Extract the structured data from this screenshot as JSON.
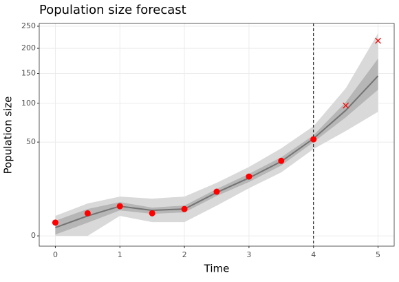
{
  "chart_data": {
    "type": "forecast",
    "title": "Population size forecast",
    "xlabel": "Time",
    "ylabel": "Population size",
    "yscale": "sqrt",
    "xlim": [
      -0.25,
      5.25
    ],
    "ylim": [
      -0.6,
      256.6
    ],
    "xticks": [
      0,
      1,
      2,
      3,
      4,
      5
    ],
    "yticks": [
      0,
      50,
      100,
      150,
      200,
      250
    ],
    "grid": true,
    "vline": 4,
    "x": [
      0,
      0.5,
      1,
      1.5,
      2,
      2.5,
      3,
      3.5,
      4,
      4.5,
      5
    ],
    "bands": [
      {
        "color": "#d9d9d9",
        "upper": [
          2.27,
          5.97,
          8.79,
          7.89,
          8.79,
          16.0,
          27.0,
          43.6,
          68.4,
          123.9,
          233.7
        ],
        "lower": [
          0,
          0,
          2.27,
          1.08,
          1.08,
          5.2,
          12.9,
          22.9,
          42.9,
          62.5,
          87.6
        ]
      },
      {
        "color": "#a6a6a6",
        "upper": [
          1.31,
          4.11,
          6.49,
          4.55,
          5.24,
          12.5,
          21.9,
          35.1,
          57.6,
          101.8,
          178.6
        ],
        "lower": [
          0.01,
          0.98,
          3.7,
          2.77,
          3.13,
          9.1,
          16.5,
          28.1,
          50.0,
          80.0,
          121.5
        ]
      }
    ],
    "median": {
      "color": "#737373",
      "values": [
        0.39,
        2.27,
        5.0,
        3.7,
        4.11,
        10.7,
        19.1,
        31.5,
        53.8,
        89.6,
        145.5
      ]
    },
    "observed": {
      "color": "#ff0000",
      "values": [
        1.0,
        2.9,
        5.0,
        2.9,
        4.1,
        11.1,
        20.0,
        32.0,
        53.0,
        null,
        null
      ]
    },
    "future": {
      "color": "#ff0000",
      "values": [
        null,
        null,
        null,
        null,
        null,
        null,
        null,
        null,
        null,
        96.6,
        216.6
      ]
    }
  }
}
